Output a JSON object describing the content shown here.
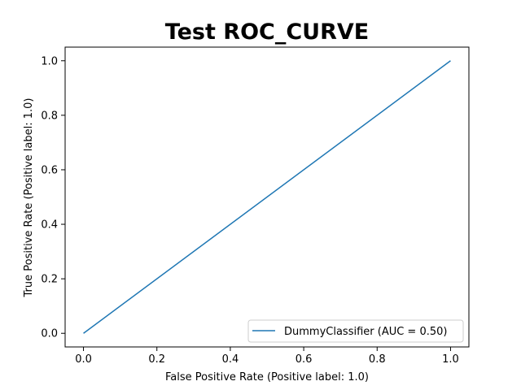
{
  "chart_data": {
    "type": "line",
    "title": "Test ROC_CURVE",
    "xlabel": "False Positive Rate (Positive label: 1.0)",
    "ylabel": "True Positive Rate (Positive label: 1.0)",
    "xlim": [
      -0.05,
      1.05
    ],
    "ylim": [
      -0.05,
      1.05
    ],
    "xticks": [
      0.0,
      0.2,
      0.4,
      0.6,
      0.8,
      1.0
    ],
    "yticks": [
      0.0,
      0.2,
      0.4,
      0.6,
      0.8,
      1.0
    ],
    "xtick_labels": [
      "0.0",
      "0.2",
      "0.4",
      "0.6",
      "0.8",
      "1.0"
    ],
    "ytick_labels": [
      "0.0",
      "0.2",
      "0.4",
      "0.6",
      "0.8",
      "1.0"
    ],
    "grid": false,
    "legend_position": "lower-right",
    "series": [
      {
        "name": "DummyClassifier (AUC = 0.50)",
        "color": "#1f77b4",
        "x": [
          0.0,
          1.0
        ],
        "y": [
          0.0,
          1.0
        ]
      }
    ]
  }
}
